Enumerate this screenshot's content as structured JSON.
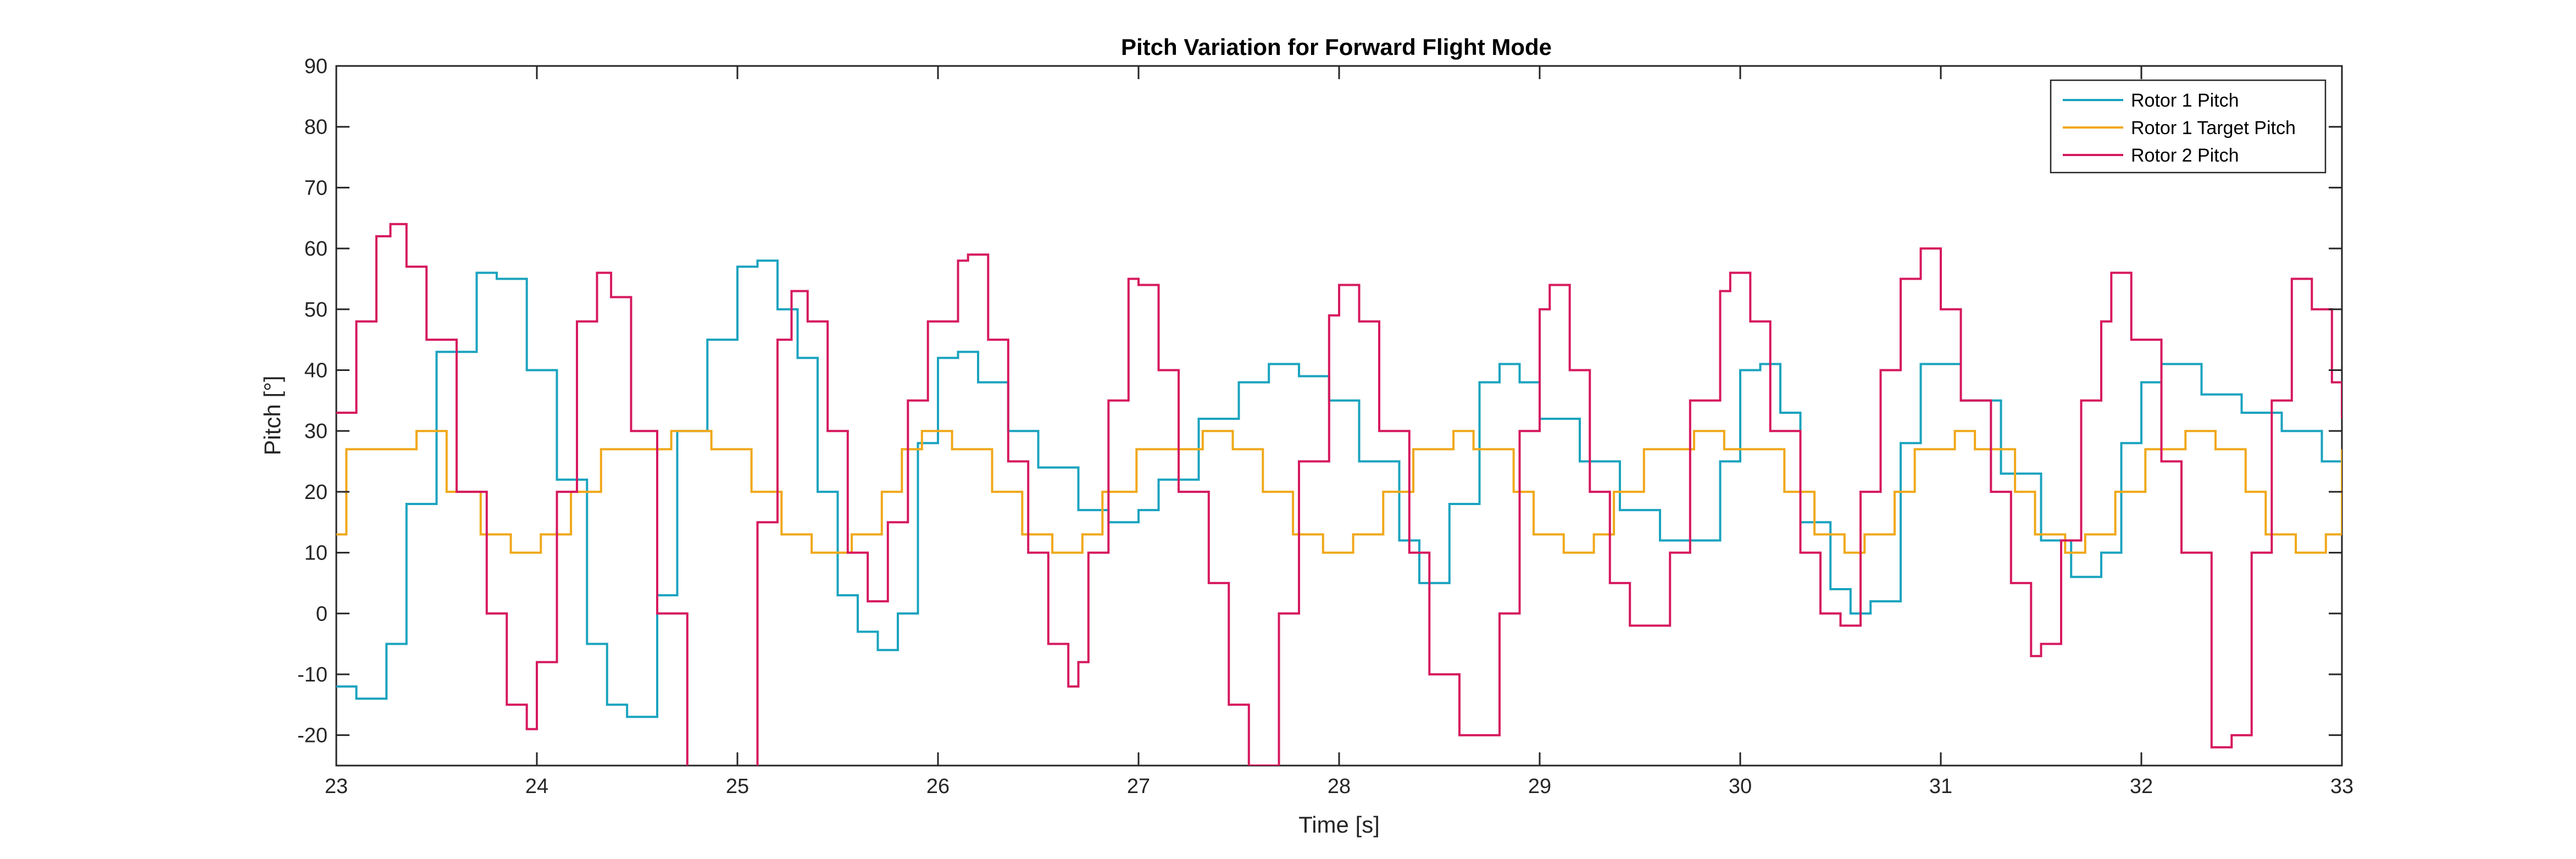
{
  "chart_data": {
    "type": "line",
    "title": "Pitch Variation for Forward Flight Mode",
    "xlabel": "Time [s]",
    "ylabel": "Pitch [°]",
    "xlim": [
      23,
      33
    ],
    "ylim": [
      -25,
      90
    ],
    "x_ticks": [
      23,
      24,
      25,
      26,
      27,
      28,
      29,
      30,
      31,
      32,
      33
    ],
    "y_ticks": [
      -20,
      -10,
      0,
      10,
      20,
      30,
      40,
      50,
      60,
      70,
      80,
      90
    ],
    "grid": false,
    "legend_position": "top-right",
    "line_style": "stepped",
    "series": [
      {
        "name": "Rotor 1 Pitch",
        "color": "#1AA3BF",
        "points": [
          [
            23,
            -12
          ],
          [
            23.1,
            -14
          ],
          [
            23.25,
            -5
          ],
          [
            23.35,
            18
          ],
          [
            23.5,
            43
          ],
          [
            23.7,
            56
          ],
          [
            23.8,
            55
          ],
          [
            23.95,
            40
          ],
          [
            24.1,
            22
          ],
          [
            24.25,
            -5
          ],
          [
            24.35,
            -15
          ],
          [
            24.45,
            -17
          ],
          [
            24.6,
            3
          ],
          [
            24.7,
            30
          ],
          [
            24.85,
            45
          ],
          [
            25,
            57
          ],
          [
            25.1,
            58
          ],
          [
            25.2,
            50
          ],
          [
            25.3,
            42
          ],
          [
            25.4,
            20
          ],
          [
            25.5,
            3
          ],
          [
            25.6,
            -3
          ],
          [
            25.7,
            -6
          ],
          [
            25.8,
            0
          ],
          [
            25.9,
            28
          ],
          [
            26,
            42
          ],
          [
            26.1,
            43
          ],
          [
            26.2,
            38
          ],
          [
            26.35,
            30
          ],
          [
            26.5,
            24
          ],
          [
            26.7,
            17
          ],
          [
            26.85,
            15
          ],
          [
            27,
            17
          ],
          [
            27.1,
            22
          ],
          [
            27.3,
            32
          ],
          [
            27.5,
            38
          ],
          [
            27.65,
            41
          ],
          [
            27.8,
            39
          ],
          [
            27.95,
            35
          ],
          [
            28.1,
            25
          ],
          [
            28.3,
            12
          ],
          [
            28.4,
            5
          ],
          [
            28.55,
            18
          ],
          [
            28.7,
            38
          ],
          [
            28.8,
            41
          ],
          [
            28.9,
            38
          ],
          [
            29,
            32
          ],
          [
            29.2,
            25
          ],
          [
            29.4,
            17
          ],
          [
            29.6,
            12
          ],
          [
            29.75,
            12
          ],
          [
            29.9,
            25
          ],
          [
            30,
            40
          ],
          [
            30.1,
            41
          ],
          [
            30.2,
            33
          ],
          [
            30.3,
            15
          ],
          [
            30.45,
            4
          ],
          [
            30.55,
            0
          ],
          [
            30.65,
            2
          ],
          [
            30.8,
            28
          ],
          [
            30.9,
            41
          ],
          [
            31,
            41
          ],
          [
            31.1,
            35
          ],
          [
            31.3,
            23
          ],
          [
            31.5,
            12
          ],
          [
            31.65,
            6
          ],
          [
            31.8,
            10
          ],
          [
            31.9,
            28
          ],
          [
            32,
            38
          ],
          [
            32.1,
            41
          ],
          [
            32.3,
            36
          ],
          [
            32.5,
            33
          ],
          [
            32.7,
            30
          ],
          [
            32.9,
            25
          ],
          [
            33,
            23
          ]
        ]
      },
      {
        "name": "Rotor 1 Target Pitch",
        "color": "#F0A81A",
        "points": [
          [
            23,
            13
          ],
          [
            23.05,
            27
          ],
          [
            23.35,
            27
          ],
          [
            23.4,
            30
          ],
          [
            23.5,
            30
          ],
          [
            23.55,
            20
          ],
          [
            23.7,
            20
          ],
          [
            23.72,
            13
          ],
          [
            23.85,
            13
          ],
          [
            23.87,
            10
          ],
          [
            24,
            10
          ],
          [
            24.02,
            13
          ],
          [
            24.15,
            13
          ],
          [
            24.17,
            20
          ],
          [
            24.3,
            20
          ],
          [
            24.32,
            27
          ],
          [
            24.65,
            27
          ],
          [
            24.67,
            30
          ],
          [
            24.85,
            30
          ],
          [
            24.87,
            27
          ],
          [
            25.05,
            27
          ],
          [
            25.07,
            20
          ],
          [
            25.2,
            20
          ],
          [
            25.22,
            13
          ],
          [
            25.35,
            13
          ],
          [
            25.37,
            10
          ],
          [
            25.55,
            10
          ],
          [
            25.57,
            13
          ],
          [
            25.7,
            13
          ],
          [
            25.72,
            20
          ],
          [
            25.8,
            20
          ],
          [
            25.82,
            27
          ],
          [
            25.9,
            27
          ],
          [
            25.92,
            30
          ],
          [
            26.05,
            30
          ],
          [
            26.07,
            27
          ],
          [
            26.25,
            27
          ],
          [
            26.27,
            20
          ],
          [
            26.4,
            20
          ],
          [
            26.42,
            13
          ],
          [
            26.55,
            13
          ],
          [
            26.57,
            10
          ],
          [
            26.7,
            10
          ],
          [
            26.72,
            13
          ],
          [
            26.8,
            13
          ],
          [
            26.82,
            20
          ],
          [
            26.97,
            20
          ],
          [
            26.99,
            27
          ],
          [
            27.3,
            27
          ],
          [
            27.32,
            30
          ],
          [
            27.45,
            30
          ],
          [
            27.47,
            27
          ],
          [
            27.6,
            27
          ],
          [
            27.62,
            20
          ],
          [
            27.75,
            20
          ],
          [
            27.77,
            13
          ],
          [
            27.9,
            13
          ],
          [
            27.92,
            10
          ],
          [
            28.05,
            10
          ],
          [
            28.07,
            13
          ],
          [
            28.2,
            13
          ],
          [
            28.22,
            20
          ],
          [
            28.35,
            20
          ],
          [
            28.37,
            27
          ],
          [
            28.55,
            27
          ],
          [
            28.57,
            30
          ],
          [
            28.65,
            30
          ],
          [
            28.67,
            27
          ],
          [
            28.85,
            27
          ],
          [
            28.87,
            20
          ],
          [
            28.95,
            20
          ],
          [
            28.97,
            13
          ],
          [
            29.1,
            13
          ],
          [
            29.12,
            10
          ],
          [
            29.25,
            10
          ],
          [
            29.27,
            13
          ],
          [
            29.35,
            13
          ],
          [
            29.37,
            20
          ],
          [
            29.5,
            20
          ],
          [
            29.52,
            27
          ],
          [
            29.75,
            27
          ],
          [
            29.77,
            30
          ],
          [
            29.9,
            30
          ],
          [
            29.92,
            27
          ],
          [
            30.2,
            27
          ],
          [
            30.22,
            20
          ],
          [
            30.35,
            20
          ],
          [
            30.37,
            13
          ],
          [
            30.5,
            13
          ],
          [
            30.52,
            10
          ],
          [
            30.6,
            10
          ],
          [
            30.62,
            13
          ],
          [
            30.75,
            13
          ],
          [
            30.77,
            20
          ],
          [
            30.85,
            20
          ],
          [
            30.87,
            27
          ],
          [
            31.05,
            27
          ],
          [
            31.07,
            30
          ],
          [
            31.15,
            30
          ],
          [
            31.17,
            27
          ],
          [
            31.35,
            27
          ],
          [
            31.37,
            20
          ],
          [
            31.45,
            20
          ],
          [
            31.47,
            13
          ],
          [
            31.6,
            13
          ],
          [
            31.62,
            10
          ],
          [
            31.7,
            10
          ],
          [
            31.72,
            13
          ],
          [
            31.85,
            13
          ],
          [
            31.87,
            20
          ],
          [
            32,
            20
          ],
          [
            32.02,
            27
          ],
          [
            32.2,
            27
          ],
          [
            32.22,
            30
          ],
          [
            32.35,
            30
          ],
          [
            32.37,
            27
          ],
          [
            32.5,
            27
          ],
          [
            32.52,
            20
          ],
          [
            32.6,
            20
          ],
          [
            32.62,
            13
          ],
          [
            32.75,
            13
          ],
          [
            32.77,
            10
          ],
          [
            32.9,
            10
          ],
          [
            32.92,
            13
          ],
          [
            33,
            13
          ],
          [
            33,
            27
          ]
        ]
      },
      {
        "name": "Rotor 2 Pitch",
        "color": "#D6185E",
        "points": [
          [
            23,
            33
          ],
          [
            23.1,
            48
          ],
          [
            23.2,
            62
          ],
          [
            23.27,
            64
          ],
          [
            23.35,
            57
          ],
          [
            23.45,
            45
          ],
          [
            23.6,
            20
          ],
          [
            23.75,
            0
          ],
          [
            23.85,
            -15
          ],
          [
            23.95,
            -19
          ],
          [
            24,
            -8
          ],
          [
            24.1,
            20
          ],
          [
            24.2,
            48
          ],
          [
            24.3,
            56
          ],
          [
            24.37,
            52
          ],
          [
            24.47,
            30
          ],
          [
            24.6,
            0
          ],
          [
            24.75,
            -26
          ],
          [
            24.85,
            -30
          ],
          [
            25,
            -30
          ],
          [
            25.1,
            15
          ],
          [
            25.2,
            45
          ],
          [
            25.27,
            53
          ],
          [
            25.35,
            48
          ],
          [
            25.45,
            30
          ],
          [
            25.55,
            10
          ],
          [
            25.65,
            2
          ],
          [
            25.75,
            15
          ],
          [
            25.85,
            35
          ],
          [
            25.95,
            48
          ],
          [
            26.1,
            58
          ],
          [
            26.15,
            59
          ],
          [
            26.25,
            45
          ],
          [
            26.35,
            25
          ],
          [
            26.45,
            10
          ],
          [
            26.55,
            -5
          ],
          [
            26.65,
            -12
          ],
          [
            26.7,
            -8
          ],
          [
            26.75,
            10
          ],
          [
            26.85,
            35
          ],
          [
            26.95,
            55
          ],
          [
            27,
            54
          ],
          [
            27.1,
            40
          ],
          [
            27.2,
            20
          ],
          [
            27.35,
            5
          ],
          [
            27.45,
            -15
          ],
          [
            27.55,
            -25
          ],
          [
            27.65,
            -25
          ],
          [
            27.7,
            0
          ],
          [
            27.8,
            25
          ],
          [
            27.95,
            49
          ],
          [
            28,
            54
          ],
          [
            28.1,
            48
          ],
          [
            28.2,
            30
          ],
          [
            28.35,
            10
          ],
          [
            28.45,
            -10
          ],
          [
            28.6,
            -20
          ],
          [
            28.7,
            -20
          ],
          [
            28.8,
            0
          ],
          [
            28.9,
            30
          ],
          [
            29,
            50
          ],
          [
            29.05,
            54
          ],
          [
            29.15,
            40
          ],
          [
            29.25,
            20
          ],
          [
            29.35,
            5
          ],
          [
            29.45,
            -2
          ],
          [
            29.55,
            -2
          ],
          [
            29.65,
            10
          ],
          [
            29.75,
            35
          ],
          [
            29.9,
            53
          ],
          [
            29.95,
            56
          ],
          [
            30.05,
            48
          ],
          [
            30.15,
            30
          ],
          [
            30.3,
            10
          ],
          [
            30.4,
            0
          ],
          [
            30.5,
            -2
          ],
          [
            30.6,
            20
          ],
          [
            30.7,
            40
          ],
          [
            30.8,
            55
          ],
          [
            30.9,
            60
          ],
          [
            31,
            50
          ],
          [
            31.1,
            35
          ],
          [
            31.25,
            20
          ],
          [
            31.35,
            5
          ],
          [
            31.45,
            -7
          ],
          [
            31.5,
            -5
          ],
          [
            31.6,
            12
          ],
          [
            31.7,
            35
          ],
          [
            31.8,
            48
          ],
          [
            31.85,
            56
          ],
          [
            31.95,
            45
          ],
          [
            32.1,
            25
          ],
          [
            32.2,
            10
          ],
          [
            32.35,
            -22
          ],
          [
            32.45,
            -20
          ],
          [
            32.55,
            10
          ],
          [
            32.65,
            35
          ],
          [
            32.75,
            55
          ],
          [
            32.85,
            50
          ],
          [
            32.95,
            38
          ],
          [
            33,
            32
          ]
        ]
      }
    ]
  }
}
